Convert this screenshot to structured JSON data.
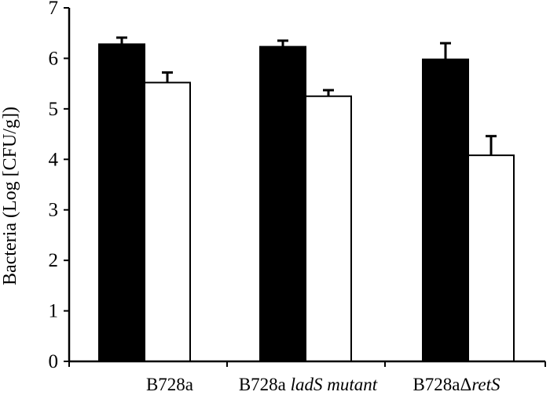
{
  "chart_data": {
    "type": "bar",
    "title": "",
    "xlabel": "",
    "ylabel": "Bacteria (Log [CFU/g])",
    "ylim": [
      0,
      7
    ],
    "yticks": [
      0,
      1,
      2,
      3,
      4,
      5,
      6,
      7
    ],
    "grid": false,
    "categories": [
      {
        "parts": [
          {
            "text": "B728a",
            "italic": false
          }
        ]
      },
      {
        "parts": [
          {
            "text": "B728a ",
            "italic": false
          },
          {
            "text": "ladS mutant",
            "italic": true
          }
        ]
      },
      {
        "parts": [
          {
            "text": "B728aΔ",
            "italic": false
          },
          {
            "text": "retS",
            "italic": true
          }
        ]
      }
    ],
    "series": [
      {
        "fill": "#000000",
        "values": [
          6.28,
          6.23,
          5.98
        ],
        "errors": [
          0.13,
          0.12,
          0.32
        ]
      },
      {
        "fill": "#ffffff",
        "values": [
          5.52,
          5.25,
          4.08
        ],
        "errors": [
          0.2,
          0.12,
          0.38
        ]
      }
    ]
  }
}
